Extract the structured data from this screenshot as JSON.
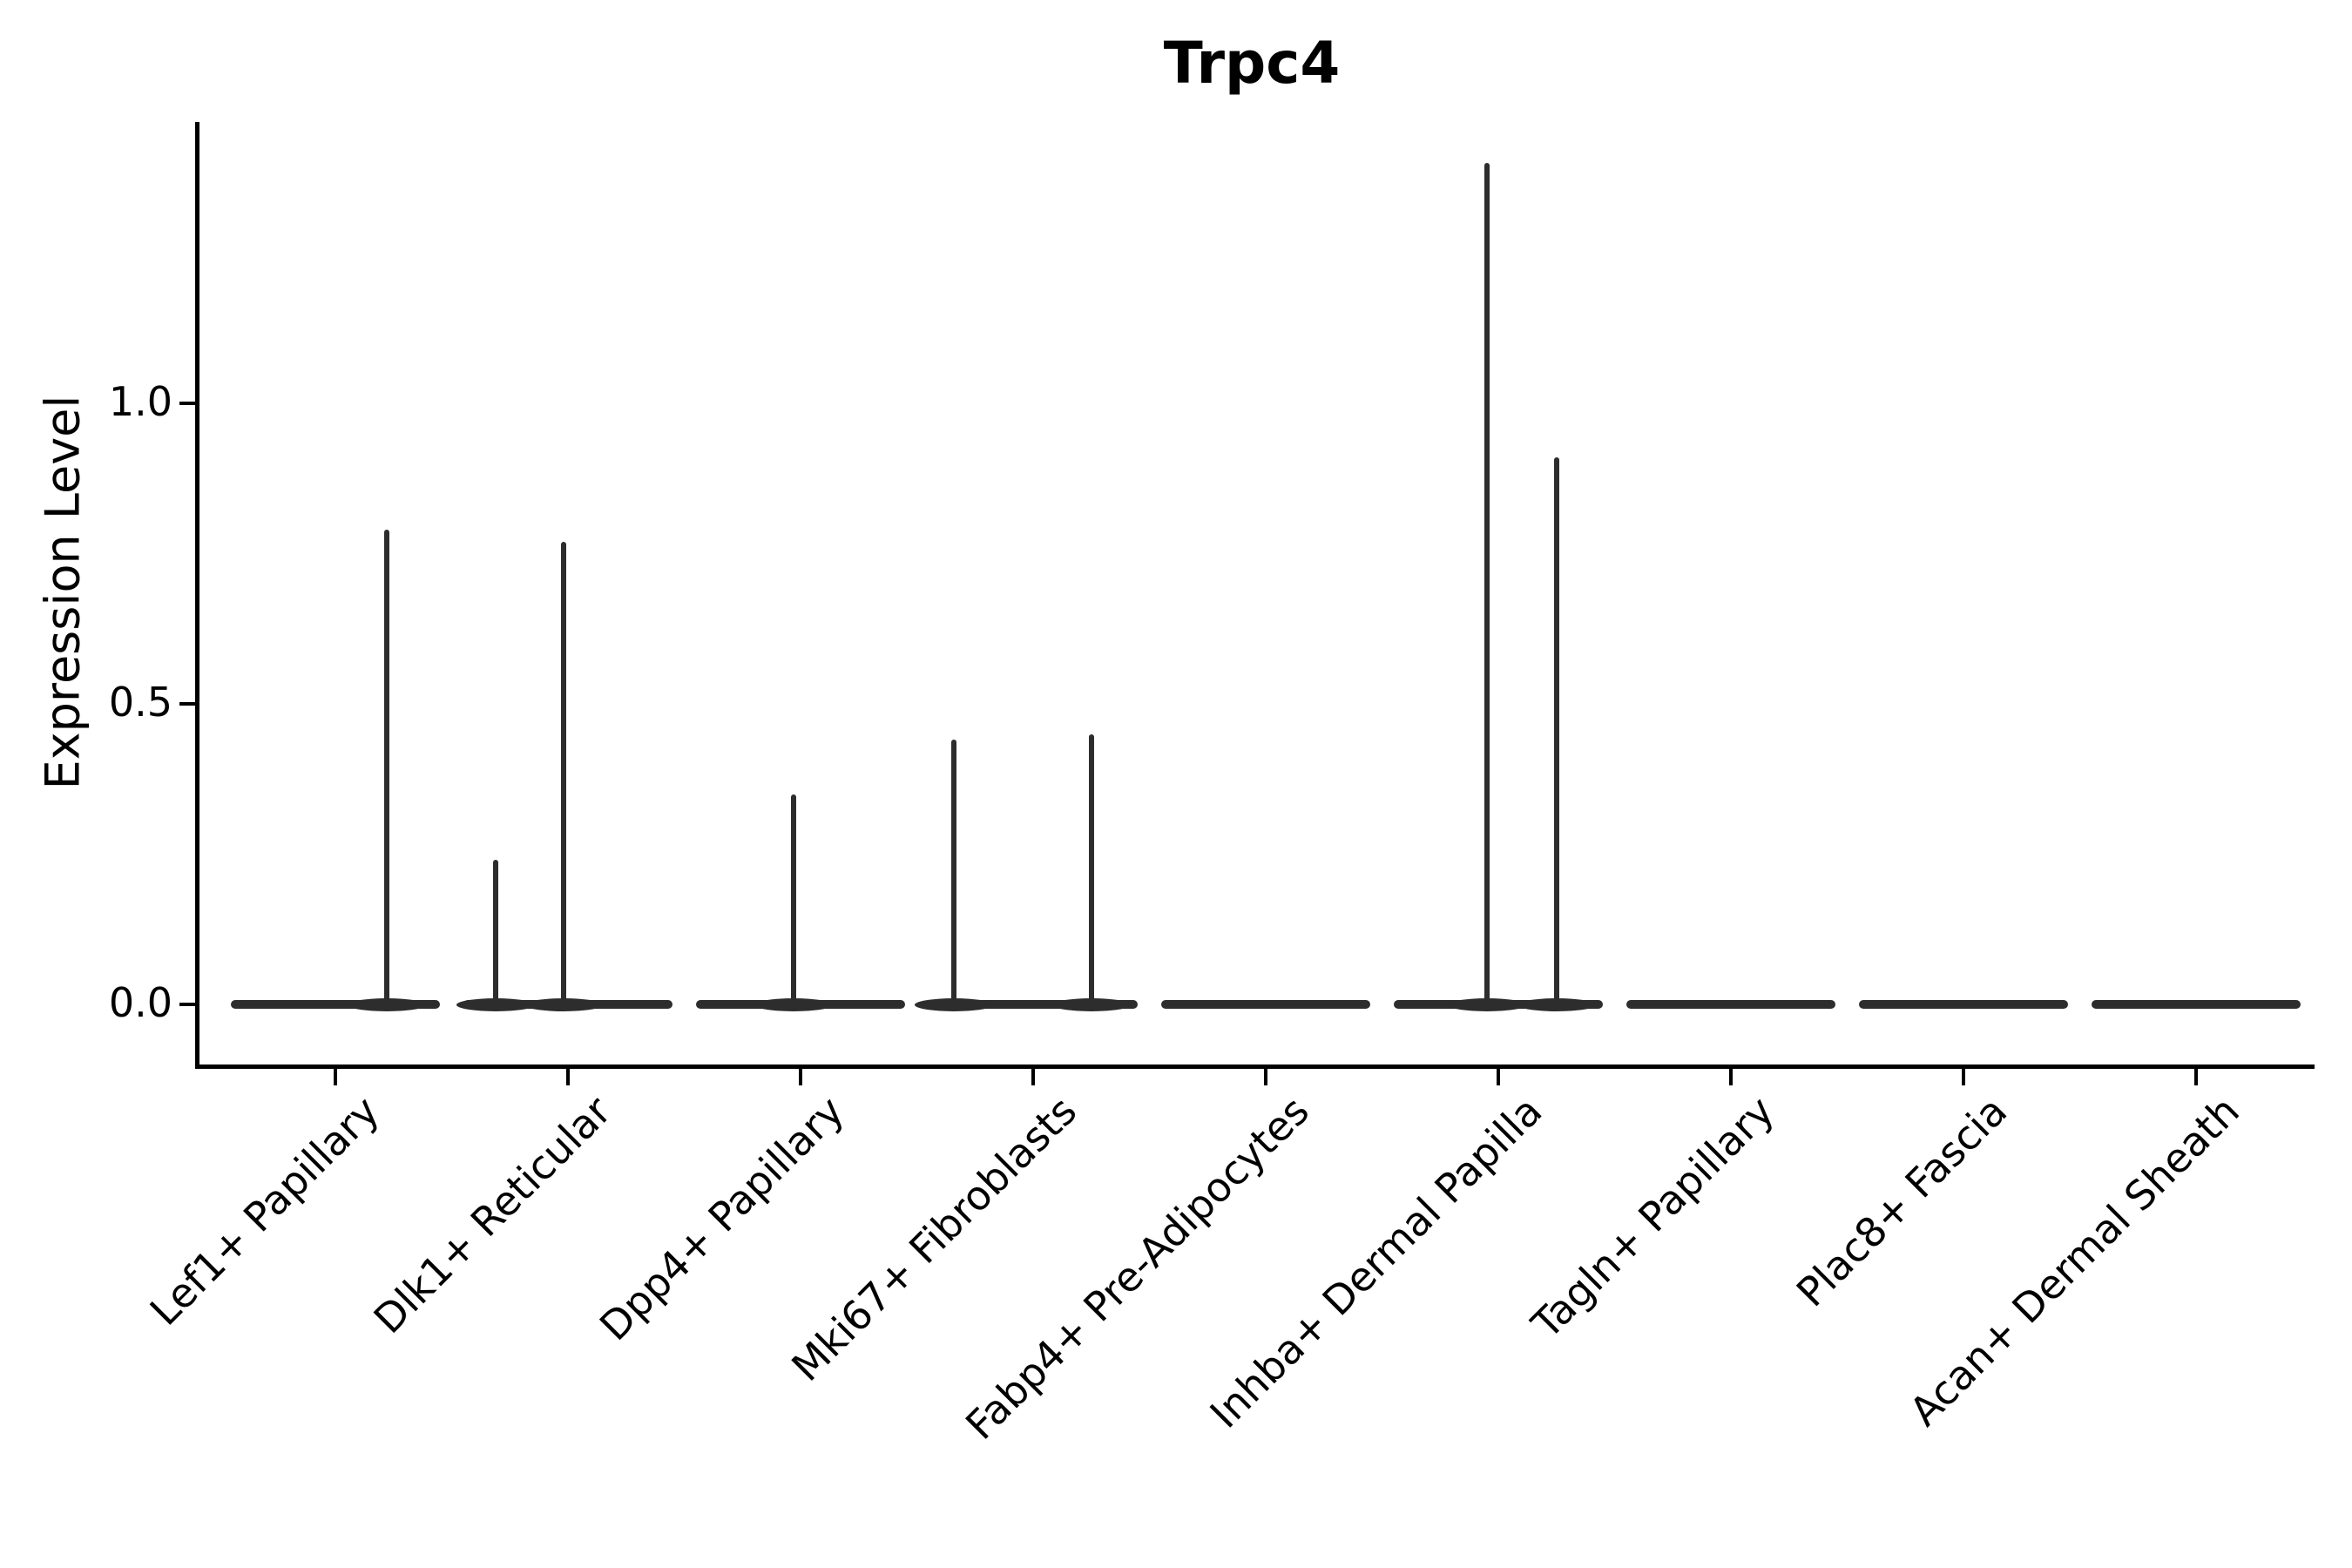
{
  "title": "Trpc4",
  "colors": {
    "background": "#ffffff",
    "axis": "#000000",
    "text": "#000000",
    "violin": "#2d2d2d"
  },
  "chart_data": {
    "type": "violin",
    "title": "Trpc4",
    "xlabel": "",
    "ylabel": "Expression Level",
    "ylim": [
      -0.1,
      1.46
    ],
    "y_ticks": [
      0.0,
      0.5,
      1.0
    ],
    "y_tick_labels": [
      "0.0",
      "0.5",
      "1.0"
    ],
    "x_tick_rotation": 45,
    "grid": false,
    "legend": "none",
    "violin_width": 0.9,
    "categories": [
      "Lef1+ Papillary",
      "Dlk1+ Reticular",
      "Dpp4+ Papillary",
      "Mki67+ Fibroblasts",
      "Fabp4+ Pre-Adipocytes",
      "Inhba+ Dermal Papilla",
      "Tagln+ Papillary",
      "Plac8+ Fascia",
      "Acan+ Dermal Sheath"
    ],
    "series": [
      {
        "label": "Lef1+ Papillary",
        "bulk_at_zero": true,
        "spikes": [
          {
            "pos": 0.22,
            "peak": 0.79
          }
        ]
      },
      {
        "label": "Dlk1+ Reticular",
        "bulk_at_zero": true,
        "spikes": [
          {
            "pos": -0.31,
            "peak": 0.24
          },
          {
            "pos": -0.02,
            "peak": 0.77
          }
        ]
      },
      {
        "label": "Dpp4+ Papillary",
        "bulk_at_zero": true,
        "spikes": [
          {
            "pos": -0.03,
            "peak": 0.35
          }
        ]
      },
      {
        "label": "Mki67+ Fibroblasts",
        "bulk_at_zero": true,
        "spikes": [
          {
            "pos": -0.34,
            "peak": 0.44
          },
          {
            "pos": 0.25,
            "peak": 0.45
          }
        ]
      },
      {
        "label": "Fabp4+ Pre-Adipocytes",
        "bulk_at_zero": true,
        "spikes": []
      },
      {
        "label": "Inhba+ Dermal Papilla",
        "bulk_at_zero": true,
        "spikes": [
          {
            "pos": -0.05,
            "peak": 1.4
          },
          {
            "pos": 0.25,
            "peak": 0.91
          }
        ]
      },
      {
        "label": "Tagln+ Papillary",
        "bulk_at_zero": true,
        "spikes": []
      },
      {
        "label": "Plac8+ Fascia",
        "bulk_at_zero": true,
        "spikes": []
      },
      {
        "label": "Acan+ Dermal Sheath",
        "bulk_at_zero": true,
        "spikes": []
      }
    ]
  }
}
